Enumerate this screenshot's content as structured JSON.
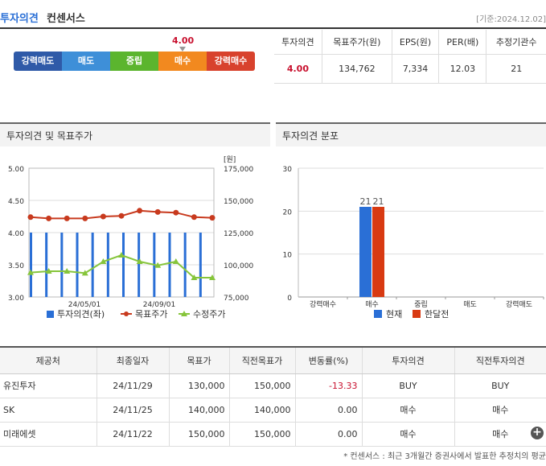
{
  "header": {
    "title_part1": "투자의견",
    "title_part2": "컨센서스",
    "base_date": "[기준:2024.12.02]"
  },
  "scale": {
    "value": "4.00",
    "value_num": 4.0,
    "segments": [
      {
        "label": "강력매도",
        "color": "#2f5aa8"
      },
      {
        "label": "매도",
        "color": "#3e8fd8"
      },
      {
        "label": "중립",
        "color": "#5bb52e"
      },
      {
        "label": "매수",
        "color": "#f2891f"
      },
      {
        "label": "강력매수",
        "color": "#d8422d"
      }
    ]
  },
  "summary": {
    "headers": [
      "투자의견",
      "목표주가(원)",
      "EPS(원)",
      "PER(배)",
      "추정기관수"
    ],
    "values": [
      "4.00",
      "134,762",
      "7,334",
      "12.03",
      "21"
    ]
  },
  "panel_left": {
    "title": "투자의견 및 목표주가",
    "unit": "[원]",
    "left_ticks": [
      "5.00",
      "4.50",
      "4.00",
      "3.50",
      "3.00"
    ],
    "right_ticks": [
      "175,000",
      "150,000",
      "125,000",
      "100,000",
      "75,000"
    ],
    "x_ticks": [
      "24/05/01",
      "24/09/01"
    ],
    "legend": [
      "투자의견(좌)",
      "목표주가",
      "수정주가"
    ]
  },
  "panel_right": {
    "title": "투자의견 분포",
    "y_ticks": [
      "30",
      "20",
      "10",
      "0"
    ],
    "categories": [
      "강력매수",
      "매수",
      "중립",
      "매도",
      "강력매도"
    ],
    "legend": [
      "현재",
      "한달전"
    ],
    "bar_labels": [
      "21",
      "21"
    ]
  },
  "chart_data": [
    {
      "type": "line",
      "title": "투자의견 및 목표주가",
      "ylabel_right": "[원]",
      "ylim_left": [
        3.0,
        5.0
      ],
      "ylim_right": [
        75000,
        175000
      ],
      "x_ticks": [
        "24/05/01",
        "24/09/01"
      ],
      "series": [
        {
          "name": "투자의견(좌)",
          "kind": "bar",
          "axis": "left",
          "color": "#2a6fd6",
          "values": [
            4.0,
            4.0,
            4.0,
            4.0,
            4.0,
            4.0,
            4.0,
            4.0,
            4.0,
            4.0,
            4.0,
            4.0
          ]
        },
        {
          "name": "목표주가",
          "kind": "line",
          "axis": "right",
          "color": "#c83a1e",
          "values": [
            137000,
            136000,
            136000,
            136000,
            137500,
            138000,
            142000,
            141000,
            140500,
            137000,
            136500
          ]
        },
        {
          "name": "수정주가",
          "kind": "line",
          "axis": "right",
          "color": "#86c53b",
          "values": [
            94000,
            95000,
            95000,
            93500,
            102500,
            107500,
            102500,
            99500,
            102500,
            90000,
            90000
          ]
        }
      ]
    },
    {
      "type": "bar",
      "title": "투자의견 분포",
      "categories": [
        "강력매수",
        "매수",
        "중립",
        "매도",
        "강력매도"
      ],
      "ylim": [
        0,
        30
      ],
      "series": [
        {
          "name": "현재",
          "color": "#2a6fd6",
          "values": [
            0,
            21,
            0,
            0,
            0
          ]
        },
        {
          "name": "한달전",
          "color": "#d83a12",
          "values": [
            0,
            21,
            0,
            0,
            0
          ]
        }
      ]
    }
  ],
  "table": {
    "headers": [
      "제공처",
      "최종일자",
      "목표가",
      "직전목표가",
      "변동률(%)",
      "투자의견",
      "직전투자의견"
    ],
    "rows": [
      [
        "유진투자",
        "24/11/29",
        "130,000",
        "150,000",
        "-13.33",
        "BUY",
        "BUY"
      ],
      [
        "SK",
        "24/11/25",
        "140,000",
        "140,000",
        "0.00",
        "매수",
        "매수"
      ],
      [
        "미래에셋",
        "24/11/22",
        "150,000",
        "150,000",
        "0.00",
        "매수",
        "매수"
      ]
    ]
  },
  "footnote": "* 컨센서스 : 최근 3개월간 증권사에서 발표한 추정치의 평균"
}
